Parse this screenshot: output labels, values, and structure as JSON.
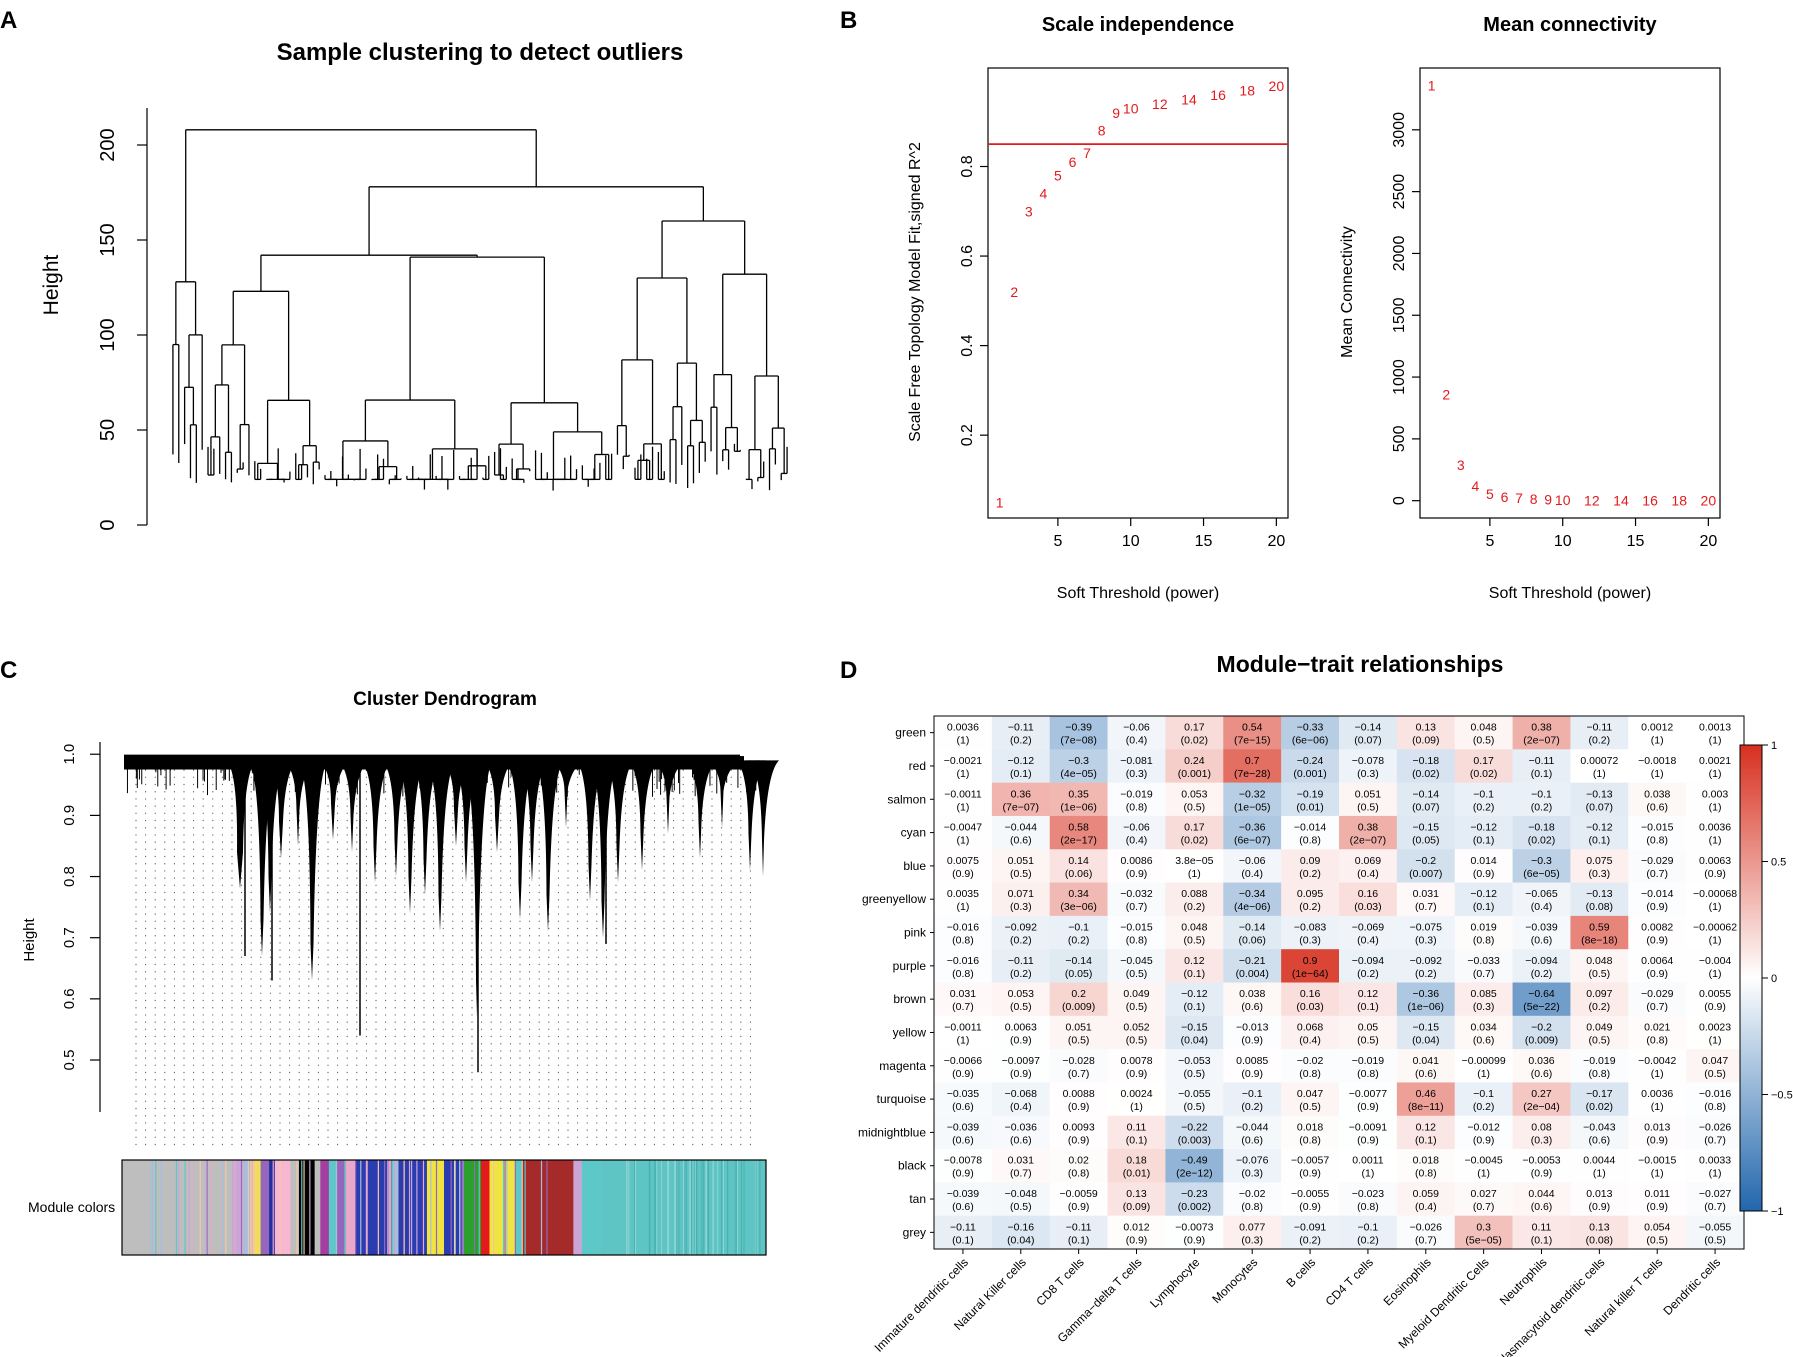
{
  "panel_labels": [
    "A",
    "B",
    "C",
    "D"
  ],
  "colors": {
    "red": "#e31a1c",
    "black": "#000000",
    "heat_low": "#2166ac",
    "heat_mid": "#ffffff",
    "heat_high": "#d7301f"
  },
  "chart_data": [
    {
      "id": "A",
      "type": "dendrogram",
      "title": "Sample clustering to detect outliers",
      "ylabel": "Height",
      "yticks": [
        0,
        50,
        100,
        150,
        200
      ],
      "ylim": [
        0,
        220
      ],
      "root_height": 208,
      "major_merge_heights": [
        208,
        178,
        160,
        142,
        141
      ]
    },
    {
      "id": "B1",
      "type": "scatter",
      "title": "Scale independence",
      "xlabel": "Soft Threshold (power)",
      "ylabel": "Scale Free Topology Model Fit,signed R^2",
      "xticks": [
        5,
        10,
        15,
        20
      ],
      "yticks": [
        0.2,
        0.4,
        0.6,
        0.8
      ],
      "xlim": [
        0.2,
        20.8
      ],
      "ylim": [
        0.015,
        1.02
      ],
      "hline": 0.85,
      "x": [
        1,
        2,
        3,
        4,
        5,
        6,
        7,
        8,
        9,
        10,
        12,
        14,
        16,
        18,
        20
      ],
      "y": [
        0.05,
        0.52,
        0.7,
        0.74,
        0.78,
        0.81,
        0.83,
        0.88,
        0.92,
        0.93,
        0.94,
        0.95,
        0.96,
        0.97,
        0.98
      ],
      "labels": [
        "1",
        "2",
        "3",
        "4",
        "5",
        "6",
        "7",
        "8",
        "9",
        "10",
        "12",
        "14",
        "16",
        "18",
        "20"
      ]
    },
    {
      "id": "B2",
      "type": "scatter",
      "title": "Mean connectivity",
      "xlabel": "Soft Threshold (power)",
      "ylabel": "Mean Connectivity",
      "xticks": [
        5,
        10,
        15,
        20
      ],
      "yticks": [
        0,
        500,
        1000,
        1500,
        2000,
        2500,
        3000
      ],
      "xlim": [
        0.2,
        20.8
      ],
      "ylim": [
        -140,
        3500
      ],
      "x": [
        1,
        2,
        3,
        4,
        5,
        6,
        7,
        8,
        9,
        10,
        12,
        14,
        16,
        18,
        20
      ],
      "y": [
        3360,
        860,
        290,
        120,
        55,
        30,
        20,
        12,
        8,
        5,
        3,
        2,
        1,
        1,
        0
      ],
      "labels": [
        "1",
        "2",
        "3",
        "4",
        "5",
        "6",
        "7",
        "8",
        "9",
        "10",
        "12",
        "14",
        "16",
        "18",
        "20"
      ]
    },
    {
      "id": "C",
      "type": "dendrogram",
      "title": "Cluster Dendrogram",
      "ylabel": "Height",
      "yticks": [
        0.5,
        0.6,
        0.7,
        0.8,
        0.9,
        1.0
      ],
      "ylim": [
        0.415,
        1.02
      ],
      "colorbar_label": "Module colors",
      "module_segments": [
        {
          "color": "#bebebe",
          "width": 0.155
        },
        {
          "color": "#c9a6d6",
          "width": 0.012
        },
        {
          "color": "#a6bddb",
          "width": 0.01
        },
        {
          "color": "#f5c8a0",
          "width": 0.01
        },
        {
          "color": "#f0e442",
          "width": 0.008
        },
        {
          "color": "#9467bd",
          "width": 0.012
        },
        {
          "color": "#1f2fa0",
          "width": 0.008
        },
        {
          "color": "#f7b6d2",
          "width": 0.022
        },
        {
          "color": "#bebebe",
          "width": 0.012
        },
        {
          "color": "#000000",
          "width": 0.022
        },
        {
          "color": "#bebebe",
          "width": 0.008
        },
        {
          "color": "#a23fa0",
          "width": 0.012
        },
        {
          "color": "#5cc8c8",
          "width": 0.01
        },
        {
          "color": "#9467bd",
          "width": 0.012
        },
        {
          "color": "#e8a8c8",
          "width": 0.016
        },
        {
          "color": "#2b3bb0",
          "width": 0.05
        },
        {
          "color": "#a6bddb",
          "width": 0.01
        },
        {
          "color": "#2b3bb0",
          "width": 0.04
        },
        {
          "color": "#f0e442",
          "width": 0.024
        },
        {
          "color": "#2b3bb0",
          "width": 0.028
        },
        {
          "color": "#2ca02c",
          "width": 0.024
        },
        {
          "color": "#e31a1c",
          "width": 0.012
        },
        {
          "color": "#f0e442",
          "width": 0.036
        },
        {
          "color": "#5cc8c8",
          "width": 0.01
        },
        {
          "color": "#a52a2a",
          "width": 0.072
        },
        {
          "color": "#c9a6d6",
          "width": 0.012
        },
        {
          "color": "#5cc8c8",
          "width": 0.027
        },
        {
          "color": "#5ec4c4",
          "width": 0.232
        }
      ]
    },
    {
      "id": "D",
      "type": "heatmap",
      "title": "Module−trait relationships",
      "rows": [
        "green",
        "red",
        "salmon",
        "cyan",
        "blue",
        "greenyellow",
        "pink",
        "purple",
        "brown",
        "yellow",
        "magenta",
        "turquoise",
        "midnightblue",
        "black",
        "tan",
        "grey"
      ],
      "cols": [
        "Immature dendritic cells",
        "Natural Killer cells",
        "CD8 T cells",
        "Gamma−delta T cells",
        "Lymphocyte",
        "Monocytes",
        "B cells",
        "CD4 T cells",
        "Eosinophils",
        "Myeloid Dendritic Cells",
        "Neutrophils",
        "Plasmacytoid dendritic cells",
        "Natural killer T cells",
        "Dendritic cells"
      ],
      "values": [
        [
          "0.0036",
          "−0.11",
          "−0.39",
          "−0.06",
          "0.17",
          "0.54",
          "−0.33",
          "−0.14",
          "0.13",
          "0.048",
          "0.38",
          "−0.11",
          "0.0012",
          "0.0013"
        ],
        [
          "−0.0021",
          "−0.12",
          "−0.3",
          "−0.081",
          "0.24",
          "0.7",
          "−0.24",
          "−0.078",
          "−0.18",
          "0.17",
          "−0.11",
          "0.00072",
          "−0.0018",
          "0.0021"
        ],
        [
          "−0.0011",
          "0.36",
          "0.35",
          "−0.019",
          "0.053",
          "−0.32",
          "−0.19",
          "0.051",
          "−0.14",
          "−0.1",
          "−0.1",
          "−0.13",
          "0.038",
          "0.003"
        ],
        [
          "−0.0047",
          "−0.044",
          "0.58",
          "−0.06",
          "0.17",
          "−0.36",
          "−0.014",
          "0.38",
          "−0.15",
          "−0.12",
          "−0.18",
          "−0.12",
          "−0.015",
          "0.0036"
        ],
        [
          "0.0075",
          "0.051",
          "0.14",
          "0.0086",
          "3.8e−05",
          "−0.06",
          "0.09",
          "0.069",
          "−0.2",
          "0.014",
          "−0.3",
          "0.075",
          "−0.029",
          "0.0063"
        ],
        [
          "0.0035",
          "0.071",
          "0.34",
          "−0.032",
          "0.088",
          "−0.34",
          "0.095",
          "0.16",
          "0.031",
          "−0.12",
          "−0.065",
          "−0.13",
          "−0.014",
          "−0.00068"
        ],
        [
          "−0.016",
          "−0.092",
          "−0.1",
          "−0.015",
          "0.048",
          "−0.14",
          "−0.083",
          "−0.069",
          "−0.075",
          "0.019",
          "−0.039",
          "0.59",
          "0.0082",
          "−0.00062"
        ],
        [
          "−0.016",
          "−0.11",
          "−0.14",
          "−0.045",
          "0.12",
          "−0.21",
          "0.9",
          "−0.094",
          "−0.092",
          "−0.033",
          "−0.094",
          "0.048",
          "0.0064",
          "−0.004"
        ],
        [
          "0.031",
          "0.053",
          "0.2",
          "0.049",
          "−0.12",
          "0.038",
          "0.16",
          "0.12",
          "−0.36",
          "0.085",
          "−0.64",
          "0.097",
          "−0.029",
          "0.0055"
        ],
        [
          "−0.0011",
          "0.0063",
          "0.051",
          "0.052",
          "−0.15",
          "−0.013",
          "0.068",
          "0.05",
          "−0.15",
          "0.034",
          "−0.2",
          "0.049",
          "0.021",
          "0.0023"
        ],
        [
          "−0.0066",
          "−0.0097",
          "−0.028",
          "0.0078",
          "−0.053",
          "0.0085",
          "−0.02",
          "−0.019",
          "0.041",
          "−0.00099",
          "0.036",
          "−0.019",
          "−0.0042",
          "0.047"
        ],
        [
          "−0.035",
          "−0.068",
          "0.0088",
          "0.0024",
          "−0.055",
          "−0.1",
          "0.047",
          "−0.0077",
          "0.46",
          "−0.1",
          "0.27",
          "−0.17",
          "0.0036",
          "−0.016"
        ],
        [
          "−0.039",
          "−0.036",
          "0.0093",
          "0.11",
          "−0.22",
          "−0.044",
          "0.018",
          "−0.0091",
          "0.12",
          "−0.012",
          "0.08",
          "−0.043",
          "0.013",
          "−0.026"
        ],
        [
          "−0.0078",
          "0.031",
          "0.02",
          "0.18",
          "−0.49",
          "−0.076",
          "−0.0057",
          "0.0011",
          "0.018",
          "−0.0045",
          "−0.0053",
          "0.0044",
          "−0.0015",
          "0.0033"
        ],
        [
          "−0.039",
          "−0.048",
          "−0.0059",
          "0.13",
          "−0.23",
          "−0.02",
          "−0.0055",
          "−0.023",
          "0.059",
          "0.027",
          "0.044",
          "0.013",
          "0.011",
          "−0.027"
        ],
        [
          "−0.11",
          "−0.16",
          "−0.11",
          "0.012",
          "−0.0073",
          "0.077",
          "−0.091",
          "−0.1",
          "−0.026",
          "0.3",
          "0.11",
          "0.13",
          "0.054",
          "−0.055"
        ]
      ],
      "pvalues": [
        [
          "(1)",
          "(0.2)",
          "(7e−08)",
          "(0.4)",
          "(0.02)",
          "(7e−15)",
          "(6e−06)",
          "(0.07)",
          "(0.09)",
          "(0.5)",
          "(2e−07)",
          "(0.2)",
          "(1)",
          "(1)"
        ],
        [
          "(1)",
          "(0.1)",
          "(4e−05)",
          "(0.3)",
          "(0.001)",
          "(7e−28)",
          "(0.001)",
          "(0.3)",
          "(0.02)",
          "(0.02)",
          "(0.1)",
          "(1)",
          "(1)",
          "(1)"
        ],
        [
          "(1)",
          "(7e−07)",
          "(1e−06)",
          "(0.8)",
          "(0.5)",
          "(1e−05)",
          "(0.01)",
          "(0.5)",
          "(0.07)",
          "(0.2)",
          "(0.2)",
          "(0.07)",
          "(0.6)",
          "(1)"
        ],
        [
          "(1)",
          "(0.6)",
          "(2e−17)",
          "(0.4)",
          "(0.02)",
          "(6e−07)",
          "(0.8)",
          "(2e−07)",
          "(0.05)",
          "(0.1)",
          "(0.02)",
          "(0.1)",
          "(0.8)",
          "(1)"
        ],
        [
          "(0.9)",
          "(0.5)",
          "(0.06)",
          "(0.9)",
          "(1)",
          "(0.4)",
          "(0.2)",
          "(0.4)",
          "(0.007)",
          "(0.9)",
          "(6e−05)",
          "(0.3)",
          "(0.7)",
          "(0.9)"
        ],
        [
          "(1)",
          "(0.3)",
          "(3e−06)",
          "(0.7)",
          "(0.2)",
          "(4e−06)",
          "(0.2)",
          "(0.03)",
          "(0.7)",
          "(0.1)",
          "(0.4)",
          "(0.08)",
          "(0.9)",
          "(1)"
        ],
        [
          "(0.8)",
          "(0.2)",
          "(0.2)",
          "(0.8)",
          "(0.5)",
          "(0.06)",
          "(0.3)",
          "(0.4)",
          "(0.3)",
          "(0.8)",
          "(0.6)",
          "(8e−18)",
          "(0.9)",
          "(1)"
        ],
        [
          "(0.8)",
          "(0.2)",
          "(0.05)",
          "(0.5)",
          "(0.1)",
          "(0.004)",
          "(1e−64)",
          "(0.2)",
          "(0.2)",
          "(0.7)",
          "(0.2)",
          "(0.5)",
          "(0.9)",
          "(1)"
        ],
        [
          "(0.7)",
          "(0.5)",
          "(0.009)",
          "(0.5)",
          "(0.1)",
          "(0.6)",
          "(0.03)",
          "(0.1)",
          "(1e−06)",
          "(0.3)",
          "(5e−22)",
          "(0.2)",
          "(0.7)",
          "(0.9)"
        ],
        [
          "(1)",
          "(0.9)",
          "(0.5)",
          "(0.5)",
          "(0.04)",
          "(0.9)",
          "(0.4)",
          "(0.5)",
          "(0.04)",
          "(0.6)",
          "(0.009)",
          "(0.5)",
          "(0.8)",
          "(1)"
        ],
        [
          "(0.9)",
          "(0.9)",
          "(0.7)",
          "(0.9)",
          "(0.5)",
          "(0.9)",
          "(0.8)",
          "(0.8)",
          "(0.6)",
          "(1)",
          "(0.6)",
          "(0.8)",
          "(1)",
          "(0.5)"
        ],
        [
          "(0.6)",
          "(0.4)",
          "(0.9)",
          "(1)",
          "(0.5)",
          "(0.2)",
          "(0.5)",
          "(0.9)",
          "(8e−11)",
          "(0.2)",
          "(2e−04)",
          "(0.02)",
          "(1)",
          "(0.8)"
        ],
        [
          "(0.6)",
          "(0.6)",
          "(0.9)",
          "(0.1)",
          "(0.003)",
          "(0.6)",
          "(0.8)",
          "(0.9)",
          "(0.1)",
          "(0.9)",
          "(0.3)",
          "(0.6)",
          "(0.9)",
          "(0.7)"
        ],
        [
          "(0.9)",
          "(0.7)",
          "(0.8)",
          "(0.01)",
          "(2e−12)",
          "(0.3)",
          "(0.9)",
          "(1)",
          "(0.8)",
          "(1)",
          "(0.9)",
          "(1)",
          "(1)",
          "(1)"
        ],
        [
          "(0.6)",
          "(0.5)",
          "(0.9)",
          "(0.09)",
          "(0.002)",
          "(0.8)",
          "(0.9)",
          "(0.8)",
          "(0.4)",
          "(0.7)",
          "(0.6)",
          "(0.9)",
          "(0.9)",
          "(0.7)"
        ],
        [
          "(0.1)",
          "(0.04)",
          "(0.1)",
          "(0.9)",
          "(0.9)",
          "(0.3)",
          "(0.2)",
          "(0.2)",
          "(0.7)",
          "(5e−05)",
          "(0.1)",
          "(0.08)",
          "(0.5)",
          "(0.5)"
        ]
      ],
      "colorbar_range": [
        -1,
        1
      ],
      "colorbar_ticks": [
        "1",
        "0.5",
        "0",
        "−0.5",
        "−1"
      ]
    }
  ]
}
